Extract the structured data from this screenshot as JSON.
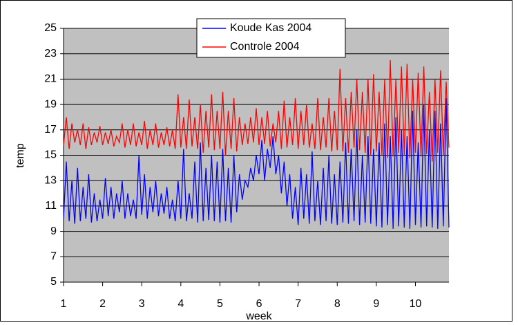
{
  "chart_data": {
    "type": "line",
    "x_label": "week",
    "y_label": "temp",
    "xlim": [
      1,
      10.857
    ],
    "xticks": [
      1,
      2,
      3,
      4,
      5,
      6,
      7,
      8,
      9,
      10
    ],
    "ylim": [
      5,
      25
    ],
    "yticks": [
      5,
      7,
      9,
      11,
      13,
      15,
      17,
      19,
      21,
      23,
      25
    ],
    "grid": true,
    "legend": "top",
    "x": [
      1,
      1.071,
      1.143,
      1.214,
      1.286,
      1.357,
      1.429,
      1.5,
      1.571,
      1.643,
      1.714,
      1.786,
      1.857,
      1.929,
      2,
      2.071,
      2.143,
      2.214,
      2.286,
      2.357,
      2.429,
      2.5,
      2.571,
      2.643,
      2.714,
      2.786,
      2.857,
      2.929,
      3,
      3.071,
      3.143,
      3.214,
      3.286,
      3.357,
      3.429,
      3.5,
      3.571,
      3.643,
      3.714,
      3.786,
      3.857,
      3.929,
      4,
      4.071,
      4.143,
      4.214,
      4.286,
      4.357,
      4.429,
      4.5,
      4.571,
      4.643,
      4.714,
      4.786,
      4.857,
      4.929,
      5,
      5.071,
      5.143,
      5.214,
      5.286,
      5.357,
      5.429,
      5.5,
      5.571,
      5.643,
      5.714,
      5.786,
      5.857,
      5.929,
      6,
      6.071,
      6.143,
      6.214,
      6.286,
      6.357,
      6.429,
      6.5,
      6.571,
      6.643,
      6.714,
      6.786,
      6.857,
      6.929,
      7,
      7.071,
      7.143,
      7.214,
      7.286,
      7.357,
      7.429,
      7.5,
      7.571,
      7.643,
      7.714,
      7.786,
      7.857,
      7.929,
      8,
      8.071,
      8.143,
      8.214,
      8.286,
      8.357,
      8.429,
      8.5,
      8.571,
      8.643,
      8.714,
      8.786,
      8.857,
      8.929,
      9,
      9.071,
      9.143,
      9.214,
      9.286,
      9.357,
      9.429,
      9.5,
      9.571,
      9.643,
      9.714,
      9.786,
      9.857,
      9.929,
      10,
      10.071,
      10.143,
      10.214,
      10.286,
      10.357,
      10.429,
      10.5,
      10.571,
      10.643,
      10.714,
      10.786,
      10.857
    ],
    "series": [
      {
        "name": "Koude Kas 2004",
        "color": "#0000ff",
        "values": [
          10,
          14.5,
          9.8,
          13,
          9.6,
          14,
          9.8,
          12.5,
          10,
          13.5,
          9.7,
          12,
          9.8,
          11.5,
          10,
          13.2,
          10.2,
          12.5,
          10,
          12,
          10.5,
          13,
          10,
          12,
          10.2,
          11.5,
          10,
          15,
          10.3,
          13.5,
          10,
          12.5,
          10.5,
          13,
          10.2,
          12,
          10.4,
          12.5,
          10,
          11.5,
          9.8,
          13,
          10,
          15.5,
          9.8,
          12,
          10,
          14.5,
          9.7,
          16,
          9.8,
          14,
          9.9,
          15,
          9.8,
          14.5,
          9.7,
          15.5,
          9.8,
          14,
          9.7,
          15,
          10.5,
          13.5,
          11.5,
          13,
          12.5,
          14,
          13,
          15,
          13.5,
          16.2,
          13,
          15.5,
          14,
          16.5,
          13.5,
          15,
          12,
          14.5,
          11,
          13.5,
          10,
          12.5,
          9.5,
          14,
          10,
          13.5,
          9.6,
          15.3,
          9.8,
          13,
          9.5,
          14,
          9.8,
          15,
          9.6,
          13.5,
          9.5,
          14.5,
          9.7,
          16,
          9.6,
          15.5,
          9.8,
          17,
          9.5,
          15,
          9.7,
          16.5,
          9.6,
          15.5,
          9.4,
          16,
          9.3,
          17.5,
          9.5,
          16.5,
          9.2,
          18,
          9.4,
          17,
          9.3,
          16.5,
          9.2,
          18.5,
          9.5,
          16,
          9.3,
          19,
          9.4,
          17,
          9.3,
          18.5,
          9.2,
          17.5,
          9.4,
          19.5,
          9.3
        ]
      },
      {
        "name": "Controle 2004",
        "color": "#ff0000",
        "values": [
          15.8,
          18,
          15.5,
          17.5,
          16,
          17,
          15.8,
          17.5,
          15.5,
          17.2,
          15.8,
          16.8,
          16,
          17.3,
          15.8,
          16.8,
          15.9,
          17,
          15.7,
          16.5,
          16,
          17.5,
          15.6,
          17,
          15.8,
          17.5,
          15.7,
          16.8,
          15.8,
          17.7,
          15.5,
          17,
          15.8,
          17.5,
          15.6,
          16.8,
          15.8,
          17.2,
          15.7,
          17,
          15.5,
          19.8,
          15.6,
          18,
          15.5,
          19.4,
          15.7,
          18,
          15.5,
          19,
          15.2,
          18.5,
          15.6,
          19.8,
          15.4,
          18.5,
          15.5,
          20,
          15,
          18.5,
          15.5,
          19.5,
          15.3,
          18,
          15.8,
          17.5,
          15.9,
          18,
          16,
          18.7,
          15.8,
          18,
          15.9,
          18.5,
          15.7,
          17.5,
          16,
          18.5,
          15.5,
          19.3,
          15.6,
          18,
          15.8,
          19.5,
          15.5,
          18.5,
          15.8,
          19,
          15.6,
          17.5,
          15.5,
          19.5,
          15.4,
          18,
          15.6,
          19.5,
          15.3,
          18.5,
          15.4,
          21.8,
          15.3,
          19.5,
          15.2,
          20,
          15.6,
          21,
          15.4,
          20,
          15.2,
          21,
          15,
          21.4,
          15.3,
          20,
          15,
          21,
          14.8,
          22.5,
          14.9,
          21,
          15.2,
          22,
          15,
          22.2,
          14.8,
          21,
          15.2,
          21.5,
          14.9,
          22,
          15.1,
          20,
          14.5,
          21,
          15.2,
          21.7,
          15,
          20.8,
          15.6
        ]
      }
    ]
  }
}
